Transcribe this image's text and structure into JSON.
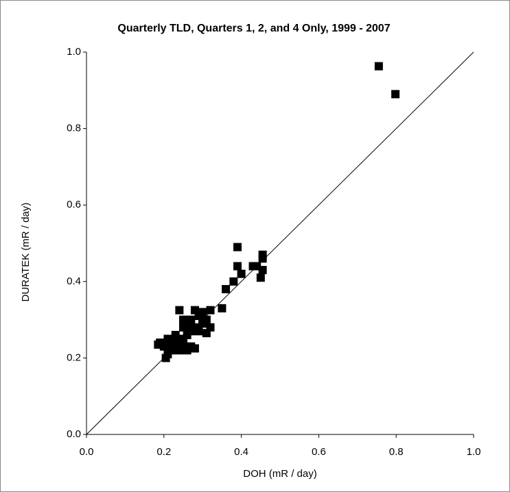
{
  "chart_data": {
    "type": "scatter",
    "title": "Quarterly TLD, Quarters 1, 2, and 4 Only, 1999 - 2007",
    "xlabel": "DOH (mR / day)",
    "ylabel": "DURATEK (mR / day)",
    "color": "#000000",
    "xlim": [
      0,
      1
    ],
    "ylim": [
      0,
      1
    ],
    "xticks": [
      {
        "value": 0,
        "label": "0.0"
      },
      0.2,
      0.4,
      0.6,
      0.8,
      {
        "value": 1,
        "label": "1.0"
      }
    ],
    "yticks": [
      {
        "value": 0,
        "label": "0.0"
      },
      0.2,
      0.4,
      0.6,
      0.8,
      {
        "value": 1,
        "label": "1.0"
      }
    ],
    "x": [
      0.755,
      0.798,
      0.39,
      0.455,
      0.455,
      0.39,
      0.43,
      0.44,
      0.455,
      0.4,
      0.45,
      0.38,
      0.36,
      0.35,
      0.24,
      0.28,
      0.3,
      0.32,
      0.29,
      0.31,
      0.27,
      0.26,
      0.3,
      0.28,
      0.32,
      0.25,
      0.27,
      0.29,
      0.31,
      0.23,
      0.26,
      0.24,
      0.21,
      0.19,
      0.22,
      0.25,
      0.27,
      0.2,
      0.23,
      0.26,
      0.21,
      0.205,
      0.185,
      0.22,
      0.24,
      0.28,
      0.3,
      0.25
    ],
    "values": [
      0.963,
      0.89,
      0.49,
      0.47,
      0.46,
      0.44,
      0.44,
      0.44,
      0.43,
      0.42,
      0.41,
      0.4,
      0.38,
      0.33,
      0.325,
      0.325,
      0.32,
      0.325,
      0.31,
      0.3,
      0.3,
      0.29,
      0.29,
      0.28,
      0.28,
      0.28,
      0.27,
      0.27,
      0.265,
      0.26,
      0.26,
      0.25,
      0.25,
      0.24,
      0.24,
      0.24,
      0.23,
      0.23,
      0.23,
      0.22,
      0.21,
      0.2,
      0.235,
      0.22,
      0.22,
      0.225,
      0.3,
      0.3
    ],
    "reference_line": true
  }
}
